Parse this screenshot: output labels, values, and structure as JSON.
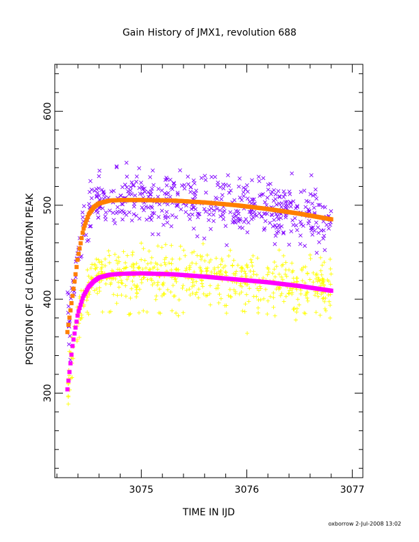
{
  "chart_data": {
    "type": "scatter",
    "title": "Gain History of JMX1, revolution 688",
    "xlabel": "TIME IN IJD",
    "ylabel": "POSITION OF Cd CALIBRATION PEAK",
    "xlim": [
      3074.18,
      3077.1
    ],
    "ylim": [
      210,
      650
    ],
    "xticks": [
      3075,
      3076,
      3077
    ],
    "yticks": [
      300,
      400,
      500,
      600
    ],
    "grid": false,
    "legend": "none",
    "footer": "oxborrow  2-Jul-2008 13:02",
    "fit_curves": [
      {
        "color": "#ff7f00",
        "t0": 3074.3,
        "t1": 3076.8,
        "x": [
          3074.3,
          3074.35,
          3074.4,
          3074.45,
          3074.5,
          3074.55,
          3074.6,
          3074.7,
          3074.8,
          3075.0,
          3075.3,
          3075.6,
          3075.9,
          3076.2,
          3076.5,
          3076.8
        ],
        "y": [
          365,
          405,
          445,
          474,
          490,
          498,
          502,
          505,
          505.5,
          505.5,
          505,
          503,
          500,
          496,
          491,
          485
        ]
      },
      {
        "color": "#ff00ff",
        "t0": 3074.3,
        "t1": 3076.8,
        "x": [
          3074.3,
          3074.35,
          3074.4,
          3074.45,
          3074.5,
          3074.55,
          3074.6,
          3074.7,
          3074.8,
          3075.0,
          3075.3,
          3075.6,
          3075.9,
          3076.2,
          3076.5,
          3076.8
        ],
        "y": [
          304,
          352,
          385,
          403,
          413,
          419,
          423,
          426,
          427,
          427.5,
          426.5,
          424,
          421,
          418,
          414,
          409
        ]
      }
    ],
    "scatter_series": [
      {
        "color": "#7f00ff",
        "marker": "x",
        "x_range": [
          3074.3,
          3076.8
        ],
        "center_offset": 0,
        "spread": 15,
        "count": 520,
        "note_center": "follows orange fit"
      },
      {
        "color": "#ffff00",
        "marker": "+",
        "x_range": [
          3074.3,
          3076.8
        ],
        "center_offset": 0,
        "spread": 14,
        "count": 620,
        "note_center": "follows magenta fit"
      }
    ]
  }
}
